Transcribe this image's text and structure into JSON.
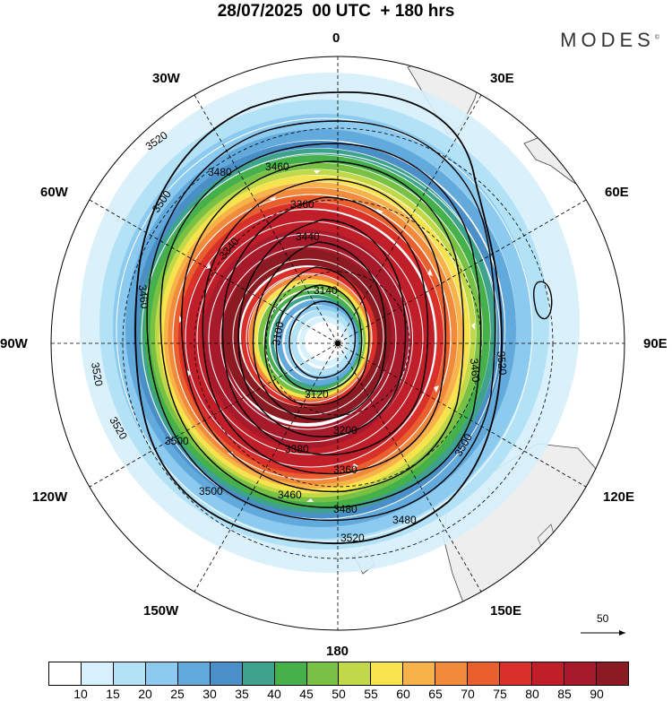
{
  "title": "28/07/2025  00 UTC  + 180 hrs",
  "brand": "MODES",
  "brand_mark": "©",
  "longitude_labels": {
    "n0": "0",
    "e30": "30E",
    "e60": "60E",
    "e90": "90E",
    "e120": "120E",
    "e150": "150E",
    "s180": "180",
    "w150": "150W",
    "w120": "120W",
    "w90": "90W",
    "w60": "60W",
    "w30": "30W"
  },
  "contour_labels": [
    "3520",
    "3480",
    "3460",
    "3500",
    "3360",
    "3340",
    "3140",
    "3100",
    "3120",
    "3200",
    "3380",
    "3440"
  ],
  "vector_reference": "50",
  "colorbar": {
    "colors": [
      "#ffffff",
      "#d6f0fc",
      "#b3e2f7",
      "#8ccbef",
      "#62a9dc",
      "#4a8fc7",
      "#3fa28c",
      "#46b04a",
      "#79c144",
      "#c1d948",
      "#f7e34d",
      "#f7b24a",
      "#f28a3c",
      "#ea5f2e",
      "#d9302a",
      "#c01f2a",
      "#a71a2b",
      "#8b1a22"
    ],
    "ticks": [
      "10",
      "15",
      "20",
      "25",
      "30",
      "35",
      "40",
      "45",
      "50",
      "55",
      "60",
      "65",
      "70",
      "75",
      "80",
      "85",
      "90"
    ]
  }
}
